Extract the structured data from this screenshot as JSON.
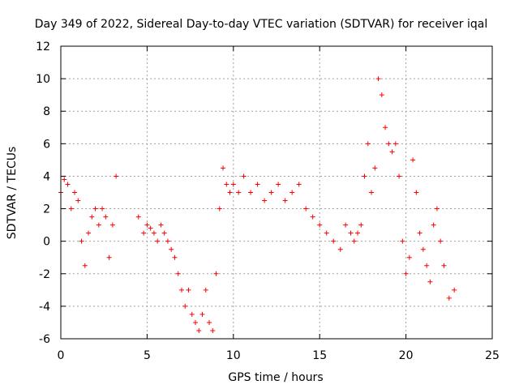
{
  "chart_data": {
    "type": "scatter",
    "title": "Day 349 of 2022, Sidereal Day-to-day VTEC variation (SDTVAR) for receiver iqal",
    "xlabel": "GPS time / hours",
    "ylabel": "SDTVAR / TECUs",
    "xlim": [
      0,
      25
    ],
    "ylim": [
      -6,
      12
    ],
    "xticks": [
      0,
      5,
      10,
      15,
      20,
      25
    ],
    "yticks": [
      -6,
      -4,
      -2,
      0,
      2,
      4,
      6,
      8,
      10,
      12
    ],
    "grid": true,
    "marker": "+",
    "color": "#ff0000",
    "series": [
      {
        "name": "SDTVAR",
        "description_trace": "approximate central trace of point cloud",
        "x": [
          0.0,
          0.2,
          0.4,
          0.6,
          0.8,
          1.0,
          1.2,
          1.4,
          1.6,
          1.8,
          2.0,
          2.2,
          2.4,
          2.6,
          2.8,
          3.0,
          3.2,
          4.5,
          4.8,
          5.0,
          5.2,
          5.4,
          5.6,
          5.8,
          6.0,
          6.2,
          6.4,
          6.6,
          6.8,
          7.0,
          7.2,
          7.4,
          7.6,
          7.8,
          8.0,
          8.2,
          8.4,
          8.6,
          8.8,
          9.0,
          9.2,
          9.4,
          9.6,
          9.8,
          10.0,
          10.3,
          10.6,
          11.0,
          11.4,
          11.8,
          12.2,
          12.6,
          13.0,
          13.4,
          13.8,
          14.2,
          14.6,
          15.0,
          15.4,
          15.8,
          16.2,
          16.5,
          16.8,
          17.0,
          17.2,
          17.4,
          17.6,
          17.8,
          18.0,
          18.2,
          18.4,
          18.6,
          18.8,
          19.0,
          19.2,
          19.4,
          19.6,
          19.8,
          20.0,
          20.2,
          20.4,
          20.6,
          20.8,
          21.0,
          21.2,
          21.4,
          21.6,
          21.8,
          22.0,
          22.2,
          22.5,
          22.8
        ],
        "y": [
          3.0,
          3.8,
          3.5,
          2.0,
          3.0,
          2.5,
          0.0,
          -1.5,
          0.5,
          1.5,
          2.0,
          1.0,
          2.0,
          1.5,
          -1.0,
          1.0,
          4.0,
          1.5,
          0.5,
          1.0,
          0.8,
          0.5,
          0.0,
          1.0,
          0.5,
          0.0,
          -0.5,
          -1.0,
          -2.0,
          -3.0,
          -4.0,
          -3.0,
          -4.5,
          -5.0,
          -5.5,
          -4.5,
          -3.0,
          -5.0,
          -5.5,
          -2.0,
          2.0,
          4.5,
          3.5,
          3.0,
          3.5,
          3.0,
          4.0,
          3.0,
          3.5,
          2.5,
          3.0,
          3.5,
          2.5,
          3.0,
          3.5,
          2.0,
          1.5,
          1.0,
          0.5,
          0.0,
          -0.5,
          1.0,
          0.5,
          0.0,
          0.5,
          1.0,
          4.0,
          6.0,
          3.0,
          4.5,
          10.0,
          9.0,
          7.0,
          6.0,
          5.5,
          6.0,
          4.0,
          0.0,
          -2.0,
          -1.0,
          5.0,
          3.0,
          0.5,
          -0.5,
          -1.5,
          -2.5,
          1.0,
          2.0,
          0.0,
          -1.5,
          -3.5,
          -3.0
        ]
      }
    ]
  }
}
